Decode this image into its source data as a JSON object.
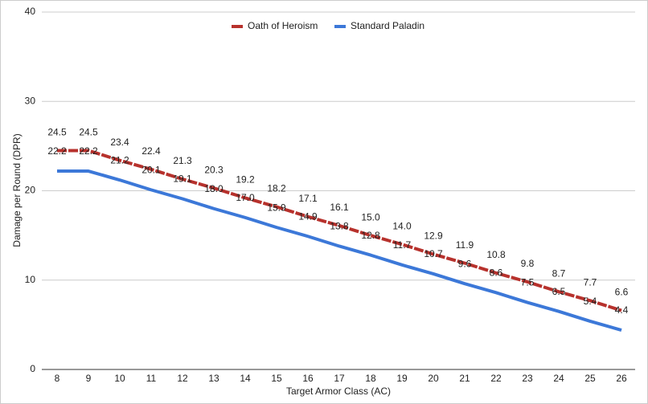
{
  "chart_data": {
    "type": "line",
    "x_label": "Target Armor Class (AC)",
    "y_label": "Damage per Round (DPR)",
    "categories": [
      "8",
      "9",
      "10",
      "11",
      "12",
      "13",
      "14",
      "15",
      "16",
      "17",
      "18",
      "19",
      "20",
      "21",
      "22",
      "23",
      "24",
      "25",
      "26"
    ],
    "series": [
      {
        "name": "Oath of Heroism",
        "color": "#b7312c",
        "values": [
          24.5,
          24.5,
          23.4,
          22.4,
          21.3,
          20.3,
          19.2,
          18.2,
          17.1,
          16.1,
          15.0,
          14.0,
          12.9,
          11.9,
          10.8,
          9.8,
          8.7,
          7.7,
          6.6
        ],
        "value_labels": [
          "24.5",
          "24.5",
          "23.4",
          "22.4",
          "21.3",
          "20.3",
          "19.2",
          "18.2",
          "17.1",
          "16.1",
          "15.0",
          "14.0",
          "12.9",
          "11.9",
          "10.8",
          "9.8",
          "8.7",
          "7.7",
          "6.6"
        ]
      },
      {
        "name": "Standard Paladin",
        "color": "#3c78d8",
        "values": [
          22.2,
          22.2,
          21.2,
          20.1,
          19.1,
          18.0,
          17.0,
          15.9,
          14.9,
          13.8,
          12.8,
          11.7,
          10.7,
          9.6,
          8.6,
          7.5,
          6.5,
          5.4,
          4.4
        ],
        "value_labels": [
          "22.2",
          "22.2",
          "21.2",
          "20.1",
          "19.1",
          "18.0",
          "17.0",
          "15.9",
          "14.9",
          "13.8",
          "12.8",
          "11.7",
          "10.7",
          "9.6",
          "8.6",
          "7.5",
          "6.5",
          "5.4",
          "4.4"
        ]
      }
    ],
    "ylim": [
      0,
      40
    ],
    "yticks": [
      0,
      10,
      20,
      30,
      40
    ],
    "grid": true,
    "legend": "top"
  }
}
